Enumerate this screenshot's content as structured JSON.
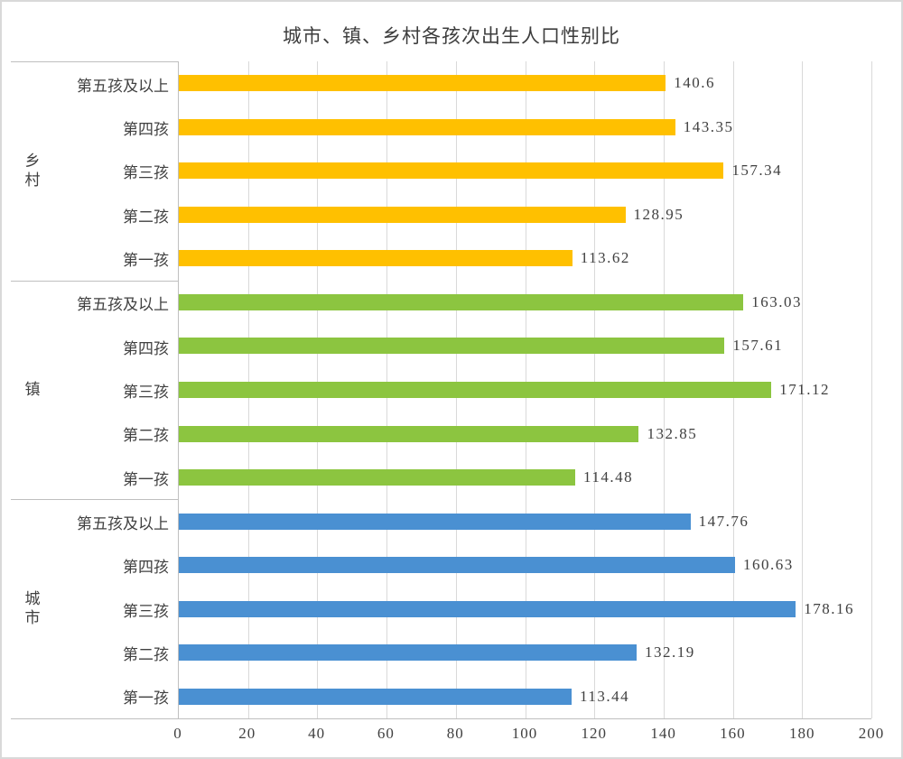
{
  "chart_data": {
    "type": "bar",
    "orientation": "horizontal",
    "title": "城市、镇、乡村各孩次出生人口性别比",
    "xlabel": "",
    "ylabel": "",
    "xlim": [
      0,
      200
    ],
    "x_ticks": [
      0,
      20,
      40,
      60,
      80,
      100,
      120,
      140,
      160,
      180,
      200
    ],
    "grid": true,
    "legend": "none",
    "categories": [
      "第五孩及以上",
      "第四孩",
      "第三孩",
      "第二孩",
      "第一孩"
    ],
    "groups": [
      {
        "name": "乡村",
        "color": "#FFC000",
        "values": [
          140.6,
          143.35,
          157.34,
          128.95,
          113.62
        ],
        "labels": [
          "140.6",
          "143.35",
          "157.34",
          "128.95",
          "113.62"
        ]
      },
      {
        "name": "镇",
        "color": "#8CC540",
        "values": [
          163.03,
          157.61,
          171.12,
          132.85,
          114.48
        ],
        "labels": [
          "163.03",
          "157.61",
          "171.12",
          "132.85",
          "114.48"
        ]
      },
      {
        "name": "城市",
        "color": "#4A90D2",
        "values": [
          147.76,
          160.63,
          178.16,
          132.19,
          113.44
        ],
        "labels": [
          "147.76",
          "160.63",
          "178.16",
          "132.19",
          "113.44"
        ]
      }
    ]
  }
}
